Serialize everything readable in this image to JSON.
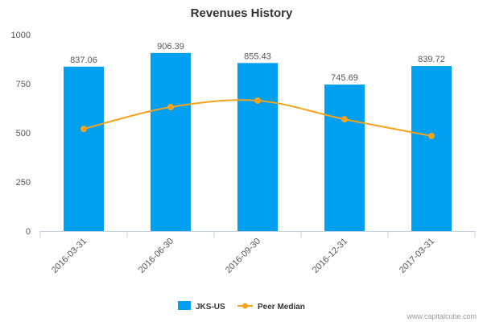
{
  "chart_data": {
    "type": "bar",
    "title": "Revenues History",
    "categories": [
      "2016-03-31",
      "2016-06-30",
      "2016-09-30",
      "2016-12-31",
      "2017-03-31"
    ],
    "series": [
      {
        "name": "JKS-US",
        "type": "bar",
        "color": "#00a0f0",
        "values": [
          837.06,
          906.39,
          855.43,
          745.69,
          839.72
        ],
        "value_labels": [
          "837.06",
          "906.39",
          "855.43",
          "745.69",
          "839.72"
        ]
      },
      {
        "name": "Peer Median",
        "type": "line",
        "color": "#f7a21b",
        "values": [
          520,
          631,
          664,
          569,
          484
        ]
      }
    ],
    "ylim": [
      0,
      1000
    ],
    "yticks": [
      "0",
      "250",
      "500",
      "750",
      "1000"
    ],
    "grid": false,
    "legend_position": "bottom-center"
  },
  "credit": "www.capitalcube.com"
}
